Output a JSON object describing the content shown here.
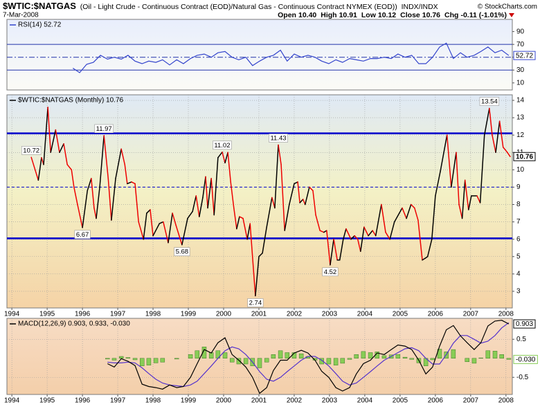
{
  "header": {
    "title": "$WTIC:$NATGAS",
    "description": "(Oil - Light Crude - Continuous Contract (EOD)/Natural Gas - Continuous Contract NYMEX (EOD))",
    "exchange": "INDX/INDX",
    "date": "7-Mar-2008",
    "credit": "© StockCharts.com",
    "quote": [
      {
        "label": "Open",
        "value": "10.40"
      },
      {
        "label": "High",
        "value": "10.91"
      },
      {
        "label": "Low",
        "value": "10.12"
      },
      {
        "label": "Close",
        "value": "10.76"
      },
      {
        "label": "Chg",
        "value": "-0.11 (-1.01%)"
      }
    ]
  },
  "chart_data": [
    {
      "type": "line",
      "legend": "RSI(14) 52.72",
      "xlim": [
        1993.86,
        2008.18
      ],
      "ylim": [
        -1,
        109
      ],
      "yticks": [
        10,
        30,
        50,
        70,
        90
      ],
      "grid": false,
      "reference_lines": [
        {
          "value": 70,
          "style": "solid",
          "color": "#2233aa"
        },
        {
          "value": 50,
          "style": "dashdot",
          "color": "#2233aa"
        },
        {
          "value": 30,
          "style": "solid",
          "color": "#2233aa"
        }
      ],
      "x": [
        1995.73,
        1995.92,
        1996.12,
        1996.31,
        1996.51,
        1996.71,
        1996.9,
        1997.1,
        1997.29,
        1997.49,
        1997.69,
        1997.88,
        1998.08,
        1998.27,
        1998.47,
        1998.67,
        1998.86,
        1999.06,
        1999.25,
        1999.45,
        1999.65,
        1999.84,
        2000.04,
        2000.24,
        2000.43,
        2000.63,
        2000.82,
        2001.02,
        2001.22,
        2001.41,
        2001.61,
        2001.8,
        2002.0,
        2002.2,
        2002.39,
        2002.59,
        2002.78,
        2002.98,
        2003.18,
        2003.37,
        2003.57,
        2003.76,
        2003.96,
        2004.16,
        2004.35,
        2004.55,
        2004.75,
        2004.94,
        2005.14,
        2005.33,
        2005.53,
        2005.73,
        2005.92,
        2006.12,
        2006.31,
        2006.51,
        2006.71,
        2006.9,
        2007.1,
        2007.29,
        2007.49,
        2007.69,
        2007.88,
        2008.08
      ],
      "series": [
        {
          "name": "RSI(14)",
          "color": "#3344cc",
          "end_box": true,
          "values": [
            33,
            26,
            39,
            42,
            53,
            47,
            50,
            47,
            53,
            44,
            40,
            44,
            42,
            46,
            38,
            46,
            40,
            48,
            53,
            55,
            50,
            57,
            59,
            50,
            46,
            50,
            37,
            44,
            50,
            53,
            61,
            44,
            55,
            50,
            53,
            50,
            44,
            40,
            46,
            42,
            48,
            46,
            44,
            48,
            48,
            50,
            48,
            55,
            50,
            53,
            40,
            40,
            50,
            66,
            72,
            48,
            57,
            50,
            53,
            59,
            66,
            57,
            61,
            52.72
          ]
        }
      ]
    },
    {
      "type": "line",
      "legend": "$WTIC:$NATGAS (Monthly) 10.76",
      "xlim": [
        1993.86,
        2008.18
      ],
      "ylim": [
        2.04,
        14.32
      ],
      "xticks": [
        1994,
        1995,
        1996,
        1997,
        1998,
        1999,
        2000,
        2001,
        2002,
        2003,
        2004,
        2005,
        2006,
        2007,
        2008
      ],
      "yticks": [
        3,
        4,
        5,
        6,
        7,
        8,
        9,
        10,
        11,
        12,
        13,
        14
      ],
      "grid": true,
      "reference_lines": [
        {
          "value": 12.1,
          "style": "thick",
          "color": "#0000cc"
        },
        {
          "value": 9,
          "style": "dashed",
          "color": "#0000cc"
        },
        {
          "value": 6.05,
          "style": "thick",
          "color": "#0000cc"
        }
      ],
      "x": [
        1994.55,
        1994.75,
        1994.84,
        1994.9,
        1995.02,
        1995.1,
        1995.24,
        1995.35,
        1995.47,
        1995.57,
        1995.69,
        1995.76,
        1995.86,
        1996.0,
        1996.14,
        1996.25,
        1996.33,
        1996.39,
        1996.49,
        1996.61,
        1996.73,
        1996.82,
        1996.94,
        1997.1,
        1997.2,
        1997.27,
        1997.39,
        1997.49,
        1997.59,
        1997.73,
        1997.82,
        1997.92,
        1998.0,
        1998.18,
        1998.29,
        1998.43,
        1998.55,
        1998.65,
        1998.82,
        1998.98,
        1999.12,
        1999.22,
        1999.31,
        1999.41,
        1999.49,
        1999.55,
        1999.65,
        1999.73,
        1999.84,
        1999.96,
        2000.04,
        2000.12,
        2000.2,
        2000.29,
        2000.37,
        2000.45,
        2000.55,
        2000.67,
        2000.75,
        2000.9,
        2001.0,
        2001.1,
        2001.22,
        2001.37,
        2001.45,
        2001.55,
        2001.63,
        2001.73,
        2001.86,
        2002.0,
        2002.1,
        2002.16,
        2002.25,
        2002.31,
        2002.43,
        2002.53,
        2002.61,
        2002.73,
        2002.84,
        2002.92,
        2003.02,
        2003.12,
        2003.22,
        2003.29,
        2003.39,
        2003.47,
        2003.61,
        2003.71,
        2003.8,
        2003.88,
        2003.98,
        2004.1,
        2004.22,
        2004.31,
        2004.47,
        2004.59,
        2004.71,
        2004.84,
        2005.06,
        2005.18,
        2005.31,
        2005.41,
        2005.51,
        2005.63,
        2005.71,
        2005.78,
        2005.9,
        2006.0,
        2006.14,
        2006.33,
        2006.45,
        2006.59,
        2006.67,
        2006.76,
        2006.84,
        2006.94,
        2007.02,
        2007.18,
        2007.27,
        2007.39,
        2007.53,
        2007.61,
        2007.71,
        2007.82,
        2007.92,
        2008.04,
        2008.12
      ],
      "series": [
        {
          "name": "$WTIC:$NATGAS",
          "up_color": "#000000",
          "down_color": "#ee0000",
          "end_box": true,
          "values": [
            10.72,
            9.4,
            10.7,
            10.3,
            13.6,
            11,
            12.3,
            11,
            11.5,
            10.3,
            10,
            9,
            8,
            6.67,
            8.8,
            9.5,
            7.8,
            7.2,
            9,
            11.97,
            9.5,
            7.1,
            9.5,
            11.2,
            10.3,
            9.2,
            9.3,
            9.2,
            7,
            6,
            7.5,
            7.7,
            6.2,
            6.9,
            7,
            5.8,
            7.5,
            6.8,
            5.68,
            7.2,
            7.6,
            8.5,
            7.3,
            8.4,
            9.6,
            7.8,
            9.5,
            7.4,
            10.7,
            11.02,
            10.4,
            11,
            9.3,
            7.8,
            6.6,
            7.3,
            7.2,
            6,
            6.9,
            2.74,
            5,
            5.2,
            6.7,
            8.4,
            7.8,
            11.43,
            10.3,
            6.5,
            8,
            9.2,
            9.3,
            8.1,
            8.3,
            8,
            9,
            8.8,
            7.4,
            6.5,
            6.4,
            6.5,
            4.52,
            6,
            4.8,
            4.8,
            6,
            6.6,
            6,
            6.2,
            6,
            5.3,
            6.7,
            6.2,
            6.5,
            6.2,
            8,
            6.4,
            6,
            7,
            7.8,
            7.2,
            8,
            7.8,
            7.1,
            4.8,
            4.9,
            5,
            6,
            8.5,
            9.9,
            12,
            9,
            11,
            8,
            7.2,
            9.4,
            7.7,
            8.5,
            8.5,
            8.1,
            12,
            13.54,
            12,
            11,
            12.8,
            11.3,
            11,
            10.76
          ]
        }
      ],
      "annotations": [
        {
          "x": 1994.55,
          "value": 10.72
        },
        {
          "x": 1996.0,
          "value": 6.67
        },
        {
          "x": 1996.61,
          "value": 11.97
        },
        {
          "x": 1998.82,
          "value": 5.68
        },
        {
          "x": 1999.96,
          "value": 11.02
        },
        {
          "x": 2000.9,
          "value": 2.74
        },
        {
          "x": 2001.55,
          "value": 11.43
        },
        {
          "x": 2003.02,
          "value": 4.52
        },
        {
          "x": 2007.53,
          "value": 13.54
        }
      ]
    },
    {
      "type": "combo",
      "legend": "MACD(12,26,9) 0.903, 0.933, -0.030",
      "xlim": [
        1993.86,
        2008.18
      ],
      "ylim": [
        -0.95,
        1.05
      ],
      "xticks": [
        1994,
        1995,
        1996,
        1997,
        1998,
        1999,
        2000,
        2001,
        2002,
        2003,
        2004,
        2005,
        2006,
        2007,
        2008
      ],
      "yticks": [
        -0.5,
        0.5
      ],
      "grid": true,
      "x": [
        1996.71,
        1996.9,
        1997.1,
        1997.29,
        1997.49,
        1997.69,
        1997.88,
        1998.08,
        1998.27,
        1998.47,
        1998.67,
        1998.86,
        1999.06,
        1999.25,
        1999.45,
        1999.65,
        1999.84,
        2000.04,
        2000.24,
        2000.43,
        2000.63,
        2000.82,
        2001.02,
        2001.22,
        2001.41,
        2001.61,
        2001.8,
        2002.0,
        2002.2,
        2002.39,
        2002.59,
        2002.78,
        2002.98,
        2003.18,
        2003.37,
        2003.57,
        2003.76,
        2003.96,
        2004.16,
        2004.35,
        2004.55,
        2004.75,
        2004.94,
        2005.14,
        2005.33,
        2005.53,
        2005.73,
        2005.92,
        2006.12,
        2006.31,
        2006.51,
        2006.71,
        2006.9,
        2007.1,
        2007.29,
        2007.49,
        2007.69,
        2007.88,
        2008.08
      ],
      "series": [
        {
          "name": "Histogram",
          "mark": "bar",
          "color": "#88cc55",
          "end_label": "-0.030",
          "values": [
            -0.02,
            -0.05,
            0.05,
            0.02,
            -0.04,
            -0.2,
            -0.18,
            -0.12,
            -0.1,
            0.0,
            -0.02,
            0.0,
            0.1,
            0.2,
            0.3,
            0.15,
            0.2,
            0.15,
            -0.1,
            -0.15,
            -0.15,
            -0.2,
            -0.25,
            -0.1,
            0.1,
            0.2,
            0.15,
            0.15,
            0.12,
            0.05,
            -0.05,
            -0.15,
            -0.15,
            -0.18,
            -0.13,
            -0.03,
            0.1,
            0.18,
            0.15,
            0.17,
            0.07,
            0.09,
            0.1,
            0.03,
            -0.03,
            -0.12,
            -0.2,
            -0.04,
            0.24,
            0.17,
            0.23,
            0.0,
            -0.09,
            -0.13,
            0.01,
            0.2,
            0.19,
            0.1,
            -0.03
          ]
        },
        {
          "name": "Signal",
          "mark": "line",
          "color": "#5533cc",
          "values": [
            -0.1,
            -0.12,
            -0.12,
            -0.1,
            -0.12,
            -0.25,
            -0.4,
            -0.55,
            -0.65,
            -0.7,
            -0.72,
            -0.74,
            -0.7,
            -0.6,
            -0.4,
            -0.2,
            0.0,
            0.2,
            0.3,
            0.25,
            0.1,
            -0.1,
            -0.35,
            -0.55,
            -0.6,
            -0.5,
            -0.35,
            -0.2,
            -0.05,
            0.05,
            0.05,
            -0.05,
            -0.2,
            -0.4,
            -0.6,
            -0.7,
            -0.65,
            -0.5,
            -0.35,
            -0.2,
            -0.05,
            0.05,
            0.15,
            0.25,
            0.28,
            0.2,
            0.0,
            -0.15,
            -0.15,
            0.1,
            0.4,
            0.6,
            0.6,
            0.5,
            0.4,
            0.45,
            0.6,
            0.8,
            0.933
          ]
        },
        {
          "name": "MACD",
          "mark": "line",
          "color": "#000000",
          "end_box": true,
          "values": [
            -0.14,
            -0.23,
            -0.01,
            -0.08,
            -0.19,
            -0.68,
            -0.74,
            -0.77,
            -0.81,
            -0.7,
            -0.77,
            -0.74,
            -0.5,
            -0.14,
            0.23,
            0.14,
            0.41,
            0.54,
            0.1,
            -0.05,
            -0.23,
            -0.5,
            -0.92,
            -0.77,
            -0.32,
            -0.05,
            -0.05,
            0.14,
            0.21,
            0.14,
            -0.05,
            -0.34,
            -0.5,
            -0.77,
            -0.86,
            -0.77,
            -0.41,
            -0.14,
            -0.05,
            0.14,
            0.1,
            0.23,
            0.35,
            0.32,
            0.23,
            -0.05,
            -0.41,
            -0.23,
            0.32,
            0.75,
            0.86,
            0.59,
            0.41,
            0.23,
            0.41,
            0.85,
            0.98,
            1.0,
            0.903
          ]
        }
      ]
    }
  ]
}
